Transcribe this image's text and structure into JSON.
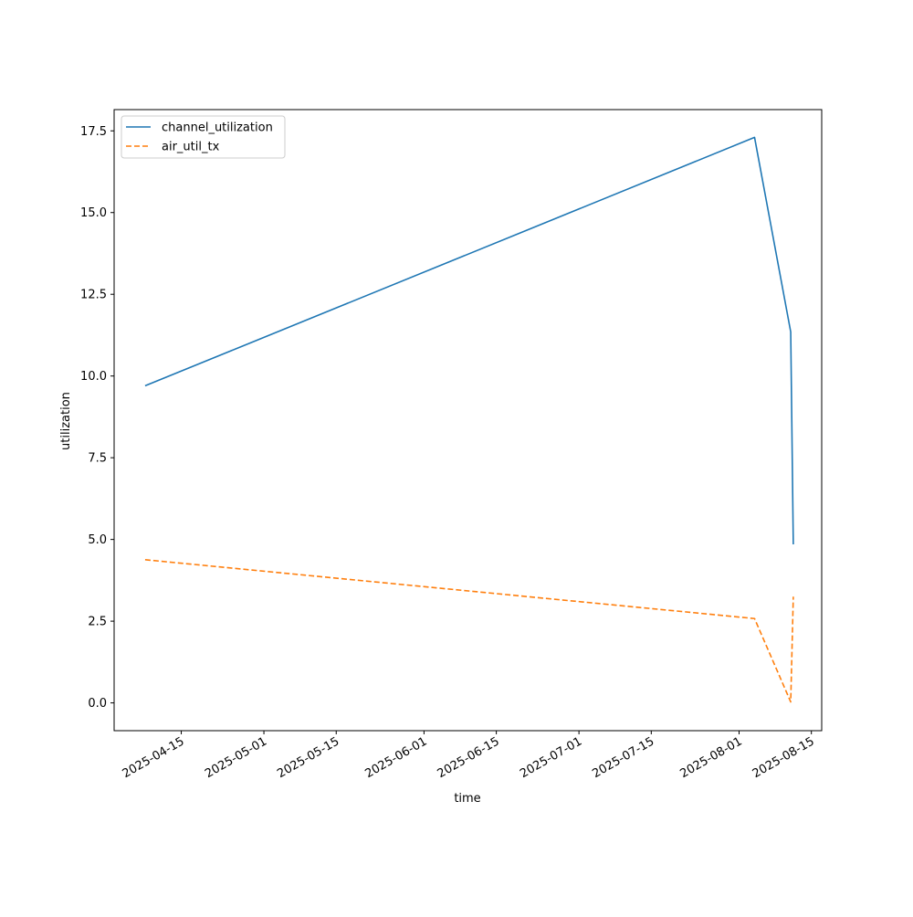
{
  "chart_data": {
    "type": "line",
    "title": "",
    "xlabel": "time",
    "ylabel": "utilization",
    "x_ticks": [
      "2025-04-15",
      "2025-05-01",
      "2025-05-15",
      "2025-06-01",
      "2025-06-15",
      "2025-07-01",
      "2025-07-15",
      "2025-08-01",
      "2025-08-15"
    ],
    "y_ticks": [
      "0.0",
      "2.5",
      "5.0",
      "7.5",
      "10.0",
      "12.5",
      "15.0",
      "17.5"
    ],
    "xlim": [
      "2025-04-02",
      "2025-08-17"
    ],
    "ylim": [
      -0.85,
      18.15
    ],
    "grid": false,
    "legend_position": "upper-left",
    "series": [
      {
        "name": "channel_utilization",
        "color": "#1f77b4",
        "style": "solid",
        "points": [
          {
            "x": "2025-04-08",
            "y": 9.7
          },
          {
            "x": "2025-08-04",
            "y": 17.3
          },
          {
            "x": "2025-08-11",
            "y": 11.35
          },
          {
            "x": "2025-08-11T12:00",
            "y": 4.85
          }
        ]
      },
      {
        "name": "air_util_tx",
        "color": "#ff7f0e",
        "style": "dashed",
        "points": [
          {
            "x": "2025-04-08",
            "y": 4.38
          },
          {
            "x": "2025-08-04",
            "y": 2.58
          },
          {
            "x": "2025-08-11",
            "y": 0.03
          },
          {
            "x": "2025-08-11T12:00",
            "y": 3.25
          }
        ]
      }
    ]
  }
}
